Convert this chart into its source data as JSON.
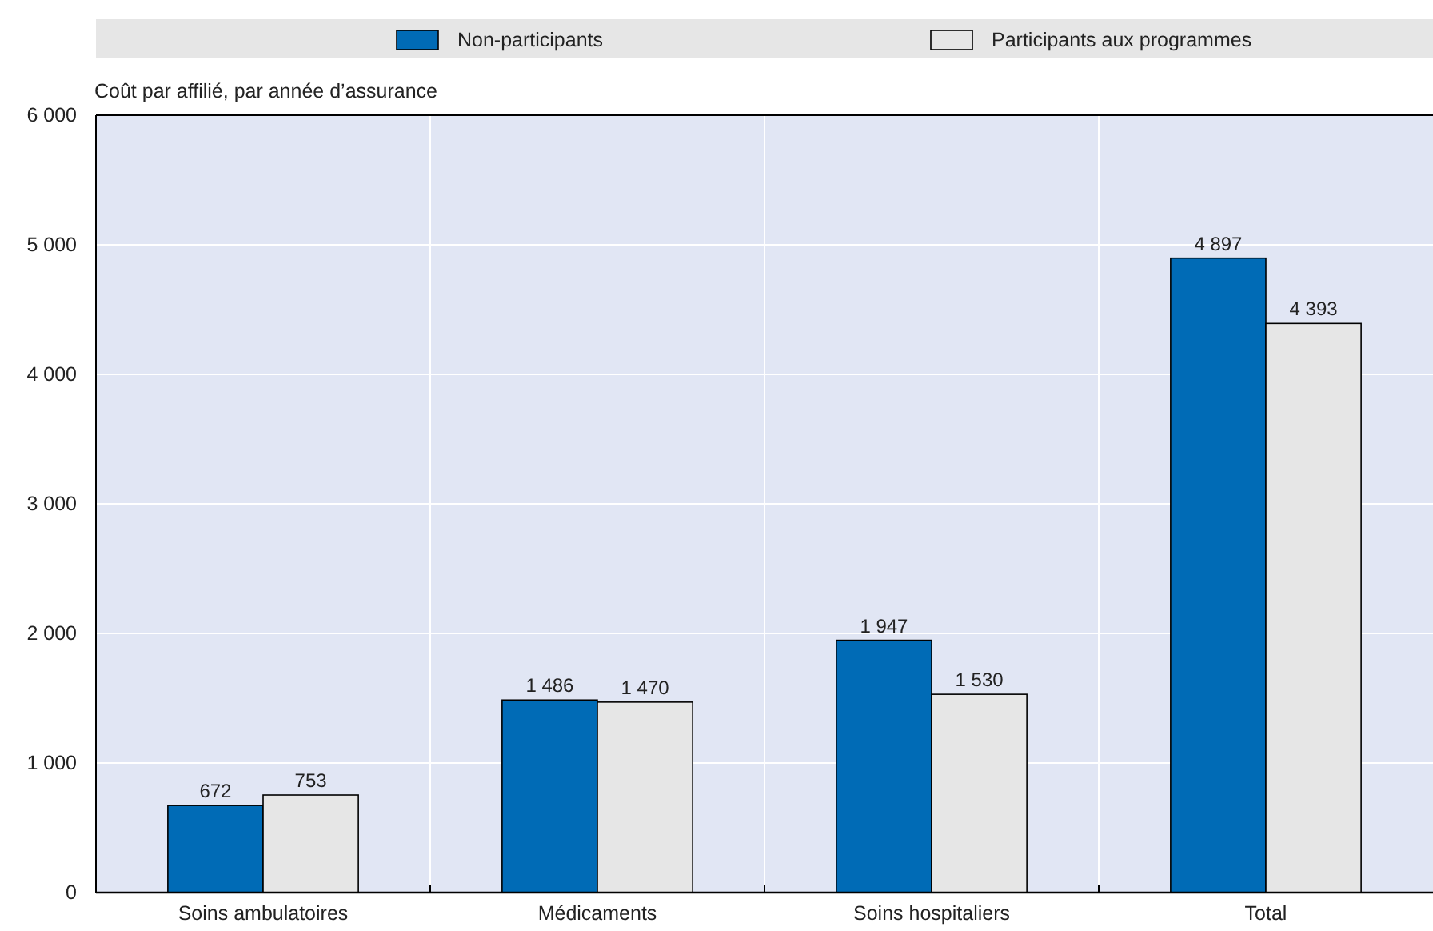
{
  "chart_data": {
    "type": "bar",
    "ylabel": "Coût par affilié, par année d’assurance",
    "categories": [
      "Soins ambulatoires",
      "Médicaments",
      "Soins hospitaliers",
      "Total"
    ],
    "series": [
      {
        "name": "Non-participants",
        "color": "#006bb6",
        "values": [
          672,
          1486,
          1947,
          4897
        ],
        "value_labels": [
          "672",
          "1 486",
          "1 947",
          "4 897"
        ]
      },
      {
        "name": "Participants aux programmes",
        "color": "#e6e6e6",
        "values": [
          753,
          1470,
          1530,
          4393
        ],
        "value_labels": [
          "753",
          "1 470",
          "1 530",
          "4 393"
        ]
      }
    ],
    "ylim": [
      0,
      6000
    ],
    "yticks": [
      0,
      {
        "value": 1000,
        "label": "1 000"
      },
      {
        "value": 2000,
        "label": "2 000"
      },
      {
        "value": 3000,
        "label": "3 000"
      },
      {
        "value": 4000,
        "label": "4 000"
      },
      {
        "value": 5000,
        "label": "5 000"
      },
      {
        "value": 6000,
        "label": "6 000"
      }
    ],
    "grid": true,
    "legend": "top"
  }
}
